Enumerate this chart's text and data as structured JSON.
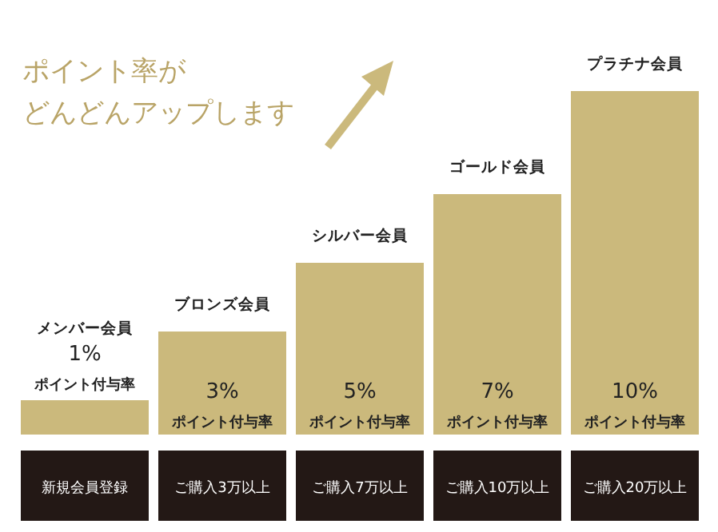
{
  "chart_data": {
    "type": "bar",
    "title": "ポイント率が",
    "subtitle": "どんどんアップします",
    "categories": [
      "メンバー会員",
      "ブロンズ会員",
      "シルバー会員",
      "ゴールド会員",
      "プラチナ会員"
    ],
    "values": [
      1,
      3,
      5,
      7,
      10
    ],
    "value_labels": [
      "1%",
      "3%",
      "5%",
      "7%",
      "10%"
    ],
    "color": "#cbb97c",
    "annotations": [
      "ポイント付与率",
      "ポイント付与率",
      "ポイント付与率",
      "ポイント付与率",
      "ポイント付与率",
      "新規会員登録",
      "ご購入3万以上",
      "ご購入7万以上",
      "ご購入10万以上",
      "ご購入20万以上"
    ]
  }
}
